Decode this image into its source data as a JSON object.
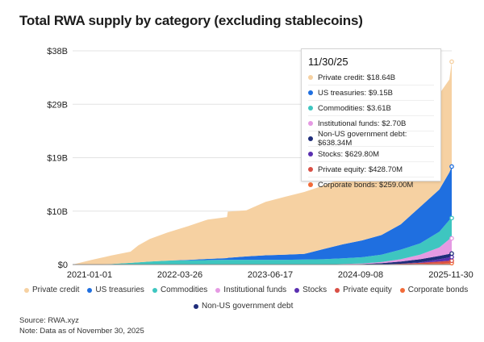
{
  "chart_data": {
    "type": "area",
    "stacked": true,
    "title": "Total RWA supply by category (excluding stablecoins)",
    "x_ticks": [
      "2021-01-01",
      "2022-03-26",
      "2023-06-17",
      "2024-09-08",
      "2025-11-30"
    ],
    "y_ticks": [
      "$0",
      "$10B",
      "$19B",
      "$29B",
      "$38B"
    ],
    "y_tick_values": [
      0,
      9.5,
      19,
      28.5,
      38
    ],
    "ylim": [
      0,
      38
    ],
    "x": [
      2021.0,
      2021.25,
      2021.5,
      2021.75,
      2021.85,
      2022.0,
      2022.23,
      2022.5,
      2022.75,
      2023.0,
      2023.01,
      2023.25,
      2023.5,
      2023.75,
      2024.0,
      2024.25,
      2024.5,
      2024.75,
      2025.0,
      2025.25,
      2025.5,
      2025.75,
      2025.88,
      2025.91
    ],
    "series": [
      {
        "name": "Corporate bonds",
        "color": "#f26b38",
        "values": [
          0,
          0,
          0,
          0,
          0,
          0,
          0,
          0,
          0,
          0,
          0,
          0,
          0,
          0,
          0,
          0,
          0,
          0,
          0,
          0.05,
          0.1,
          0.2,
          0.25,
          0.26
        ]
      },
      {
        "name": "Private equity",
        "color": "#d94f45",
        "values": [
          0,
          0,
          0,
          0,
          0,
          0,
          0,
          0,
          0,
          0,
          0,
          0,
          0,
          0,
          0,
          0,
          0,
          0,
          0.05,
          0.1,
          0.2,
          0.35,
          0.42,
          0.43
        ]
      },
      {
        "name": "Stocks",
        "color": "#5a2fb0",
        "values": [
          0,
          0,
          0,
          0,
          0,
          0,
          0,
          0,
          0,
          0,
          0,
          0,
          0,
          0,
          0,
          0,
          0,
          0,
          0,
          0,
          0.1,
          0.4,
          0.6,
          0.63
        ]
      },
      {
        "name": "Non-US government debt",
        "color": "#1f2d7a",
        "values": [
          0,
          0,
          0,
          0,
          0,
          0,
          0,
          0,
          0,
          0,
          0,
          0,
          0,
          0,
          0,
          0,
          0.05,
          0.1,
          0.2,
          0.4,
          0.55,
          0.6,
          0.64,
          0.64
        ]
      },
      {
        "name": "Institutional funds",
        "color": "#e59ae3",
        "values": [
          0,
          0,
          0,
          0,
          0,
          0,
          0,
          0,
          0,
          0,
          0,
          0,
          0,
          0,
          0,
          0,
          0.05,
          0.1,
          0.2,
          0.4,
          0.8,
          1.5,
          2.6,
          2.7
        ]
      },
      {
        "name": "Commodities",
        "color": "#3ec6c0",
        "values": [
          0,
          0.05,
          0.1,
          0.3,
          0.4,
          0.55,
          0.7,
          0.75,
          0.8,
          0.85,
          0.85,
          0.85,
          0.85,
          0.85,
          0.9,
          0.95,
          1.0,
          1.1,
          1.3,
          1.7,
          2.0,
          2.8,
          3.4,
          3.61
        ]
      },
      {
        "name": "US treasuries",
        "color": "#1f6fe0",
        "values": [
          0,
          0,
          0,
          0,
          0,
          0,
          0,
          0.1,
          0.2,
          0.3,
          0.35,
          0.6,
          0.8,
          0.9,
          1.0,
          1.8,
          2.5,
          3.0,
          3.5,
          4.5,
          6.5,
          7.5,
          8.5,
          9.15
        ]
      },
      {
        "name": "Private credit",
        "color": "#f6d1a2",
        "values": [
          0,
          0.8,
          1.5,
          2.0,
          3.0,
          4.0,
          5.0,
          6.0,
          7.0,
          7.3,
          8.2,
          8.2,
          9.5,
          10.3,
          11.0,
          11.3,
          11.8,
          12.5,
          13.5,
          15.0,
          14.5,
          17.0,
          16.5,
          18.64
        ]
      }
    ],
    "tooltip": {
      "date": "11/30/25",
      "rows": [
        {
          "label": "Private credit: $18.64B",
          "color": "#f6d1a2"
        },
        {
          "label": "US treasuries: $9.15B",
          "color": "#1f6fe0"
        },
        {
          "label": "Commodities: $3.61B",
          "color": "#3ec6c0"
        },
        {
          "label": "Institutional funds: $2.70B",
          "color": "#e59ae3"
        },
        {
          "label": "Non-US government debt: $638.34M",
          "color": "#1f2d7a"
        },
        {
          "label": "Stocks: $629.80M",
          "color": "#5a2fb0"
        },
        {
          "label": "Private equity: $428.70M",
          "color": "#d94f45"
        },
        {
          "label": "Corporate bonds: $259.00M",
          "color": "#f26b38"
        }
      ]
    },
    "legend": [
      [
        {
          "name": "Private credit",
          "color": "#f6d1a2"
        },
        {
          "name": "US treasuries",
          "color": "#1f6fe0"
        },
        {
          "name": "Commodities",
          "color": "#3ec6c0"
        },
        {
          "name": "Institutional funds",
          "color": "#e59ae3"
        },
        {
          "name": "Stocks",
          "color": "#5a2fb0"
        },
        {
          "name": "Private equity",
          "color": "#d94f45"
        },
        {
          "name": "Corporate bonds",
          "color": "#f26b38"
        }
      ],
      [
        {
          "name": "Non-US government debt",
          "color": "#1f2d7a"
        }
      ]
    ]
  },
  "footer": {
    "source": "Source: RWA.xyz",
    "note": "Note: Data as of November 30, 2025"
  }
}
